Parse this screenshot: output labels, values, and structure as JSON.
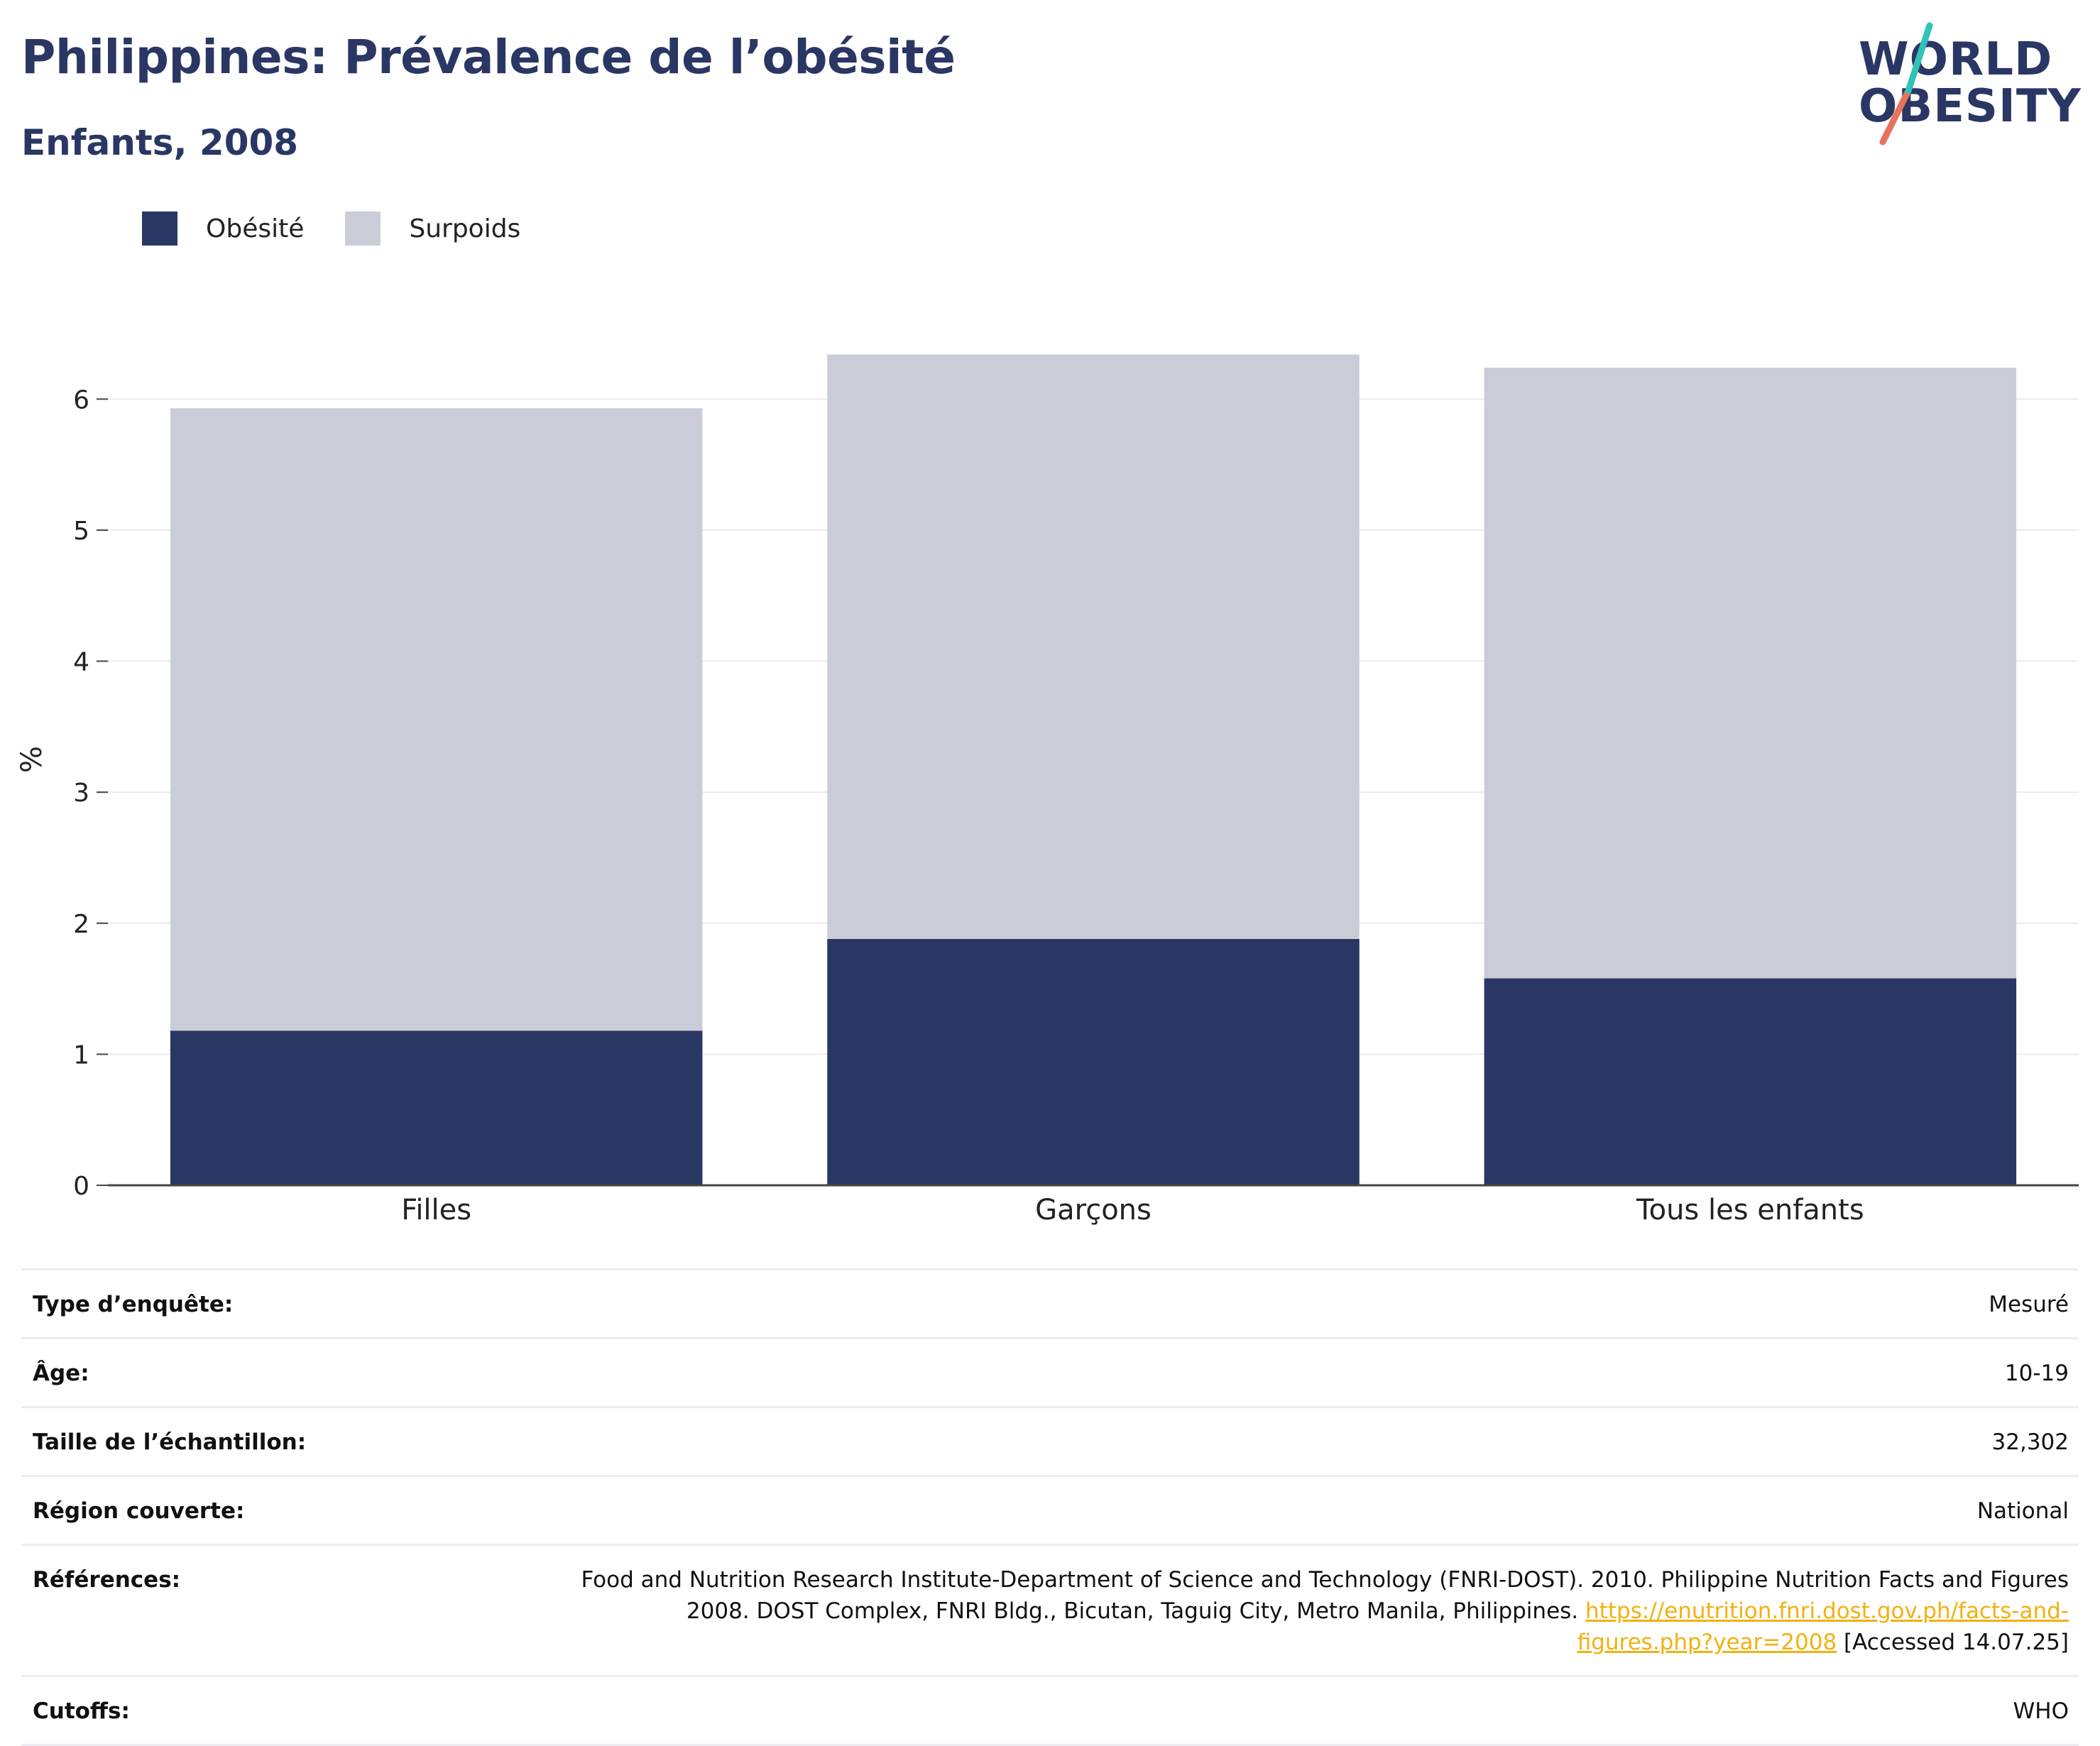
{
  "header": {
    "title": "Philippines: Prévalence de l’obésité",
    "subtitle": "Enfants, 2008"
  },
  "logo": {
    "line1": "WORLD",
    "line2": "OBESITY"
  },
  "legend": [
    {
      "label": "Obésité",
      "color": "#2a3764"
    },
    {
      "label": "Surpoids",
      "color": "#cacdd8"
    }
  ],
  "chart_data": {
    "type": "bar",
    "stacked": true,
    "categories": [
      "Filles",
      "Garçons",
      "Tous les enfants"
    ],
    "series": [
      {
        "name": "Obésité",
        "color": "#2a3764",
        "values": [
          1.18,
          1.88,
          1.58
        ]
      },
      {
        "name": "Surpoids",
        "color": "#cacdd8",
        "values": [
          4.75,
          4.46,
          4.66
        ]
      }
    ],
    "ylabel": "%",
    "ylim": [
      0,
      6.5
    ],
    "yticks": [
      0,
      1,
      2,
      3,
      4,
      5,
      6
    ],
    "grid": true,
    "legend_position": "top-left"
  },
  "info": {
    "rows": [
      {
        "key": "Type d’enquête:",
        "value": "Mesuré"
      },
      {
        "key": "Âge:",
        "value": "10-19"
      },
      {
        "key": "Taille de l’échantillon:",
        "value": "32,302"
      },
      {
        "key": "Région couverte:",
        "value": "National"
      }
    ],
    "references": {
      "key": "Références:",
      "text": "Food and Nutrition Research Institute-Department of Science and Technology (FNRI-DOST). 2010. Philippine Nutrition Facts and Figures 2008. DOST Complex, FNRI Bldg., Bicutan, Taguig City, Metro Manila, Philippines. ",
      "link": "https://enutrition.fnri.dost.gov.ph/facts-and-figures.php?year=2008",
      "suffix": " [Accessed 14.07.25]"
    },
    "cutoffs": {
      "key": "Cutoffs:",
      "value": "WHO"
    }
  }
}
